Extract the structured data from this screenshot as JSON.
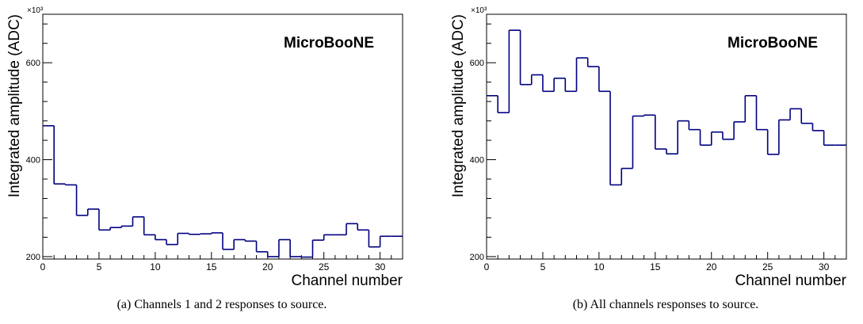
{
  "chart_data": [
    {
      "type": "line",
      "drawstyle": "steps",
      "caption": "(a) Channels 1 and 2 responses to source.",
      "watermark": "MicroBooNE",
      "xlabel": "Channel number",
      "ylabel": "Integrated amplitude (ADC)",
      "y_multiplier": "×10³",
      "xlim": [
        0,
        32
      ],
      "ylim": [
        195,
        700
      ],
      "xticks": [
        0,
        5,
        10,
        15,
        20,
        25,
        30
      ],
      "yticks": [
        200,
        400,
        600
      ],
      "line_color": "#000080",
      "x": [
        0,
        1,
        2,
        3,
        4,
        5,
        6,
        7,
        8,
        9,
        10,
        11,
        12,
        13,
        14,
        15,
        16,
        17,
        18,
        19,
        20,
        21,
        22,
        23,
        24,
        25,
        26,
        27,
        28,
        29,
        30,
        31
      ],
      "values": [
        470,
        350,
        348,
        285,
        298,
        255,
        260,
        263,
        282,
        245,
        235,
        225,
        248,
        246,
        247,
        249,
        215,
        235,
        232,
        210,
        200,
        235,
        200,
        199,
        234,
        245,
        245,
        268,
        255,
        220,
        242,
        242
      ]
    },
    {
      "type": "line",
      "drawstyle": "steps",
      "caption": "(b) All channels responses to source.",
      "watermark": "MicroBooNE",
      "xlabel": "Channel number",
      "ylabel": "Integrated amplitude (ADC)",
      "y_multiplier": "×10³",
      "xlim": [
        0,
        32
      ],
      "ylim": [
        195,
        700
      ],
      "xticks": [
        0,
        5,
        10,
        15,
        20,
        25,
        30
      ],
      "yticks": [
        200,
        400,
        600
      ],
      "line_color": "#000080",
      "x": [
        0,
        1,
        2,
        3,
        4,
        5,
        6,
        7,
        8,
        9,
        10,
        11,
        12,
        13,
        14,
        15,
        16,
        17,
        18,
        19,
        20,
        21,
        22,
        23,
        24,
        25,
        26,
        27,
        28,
        29,
        30,
        31
      ],
      "values": [
        532,
        497,
        667,
        555,
        575,
        541,
        568,
        541,
        610,
        592,
        541,
        348,
        382,
        490,
        492,
        422,
        412,
        480,
        462,
        430,
        457,
        442,
        478,
        532,
        462,
        411,
        482,
        505,
        475,
        460,
        430,
        430
      ]
    }
  ]
}
